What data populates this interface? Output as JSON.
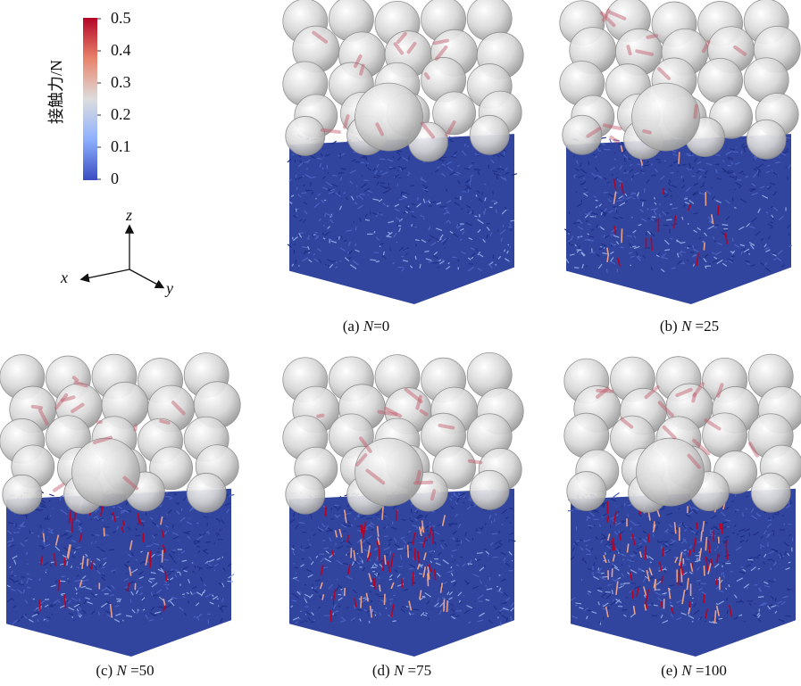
{
  "colorbar": {
    "label": "接触力/N",
    "ticks": [
      "0.5",
      "0.4",
      "0.3",
      "0.2",
      "0.1",
      "0"
    ],
    "min": 0,
    "max": 0.5,
    "colors": {
      "high": "#b40426",
      "mid": "#dddddd",
      "low": "#3b4cc0"
    }
  },
  "axes": {
    "z": "z",
    "x": "x",
    "y": "y"
  },
  "panels": [
    {
      "prefix": "(a) ",
      "var": "N",
      "suffix": "=0",
      "cycles": 0
    },
    {
      "prefix": "(b) ",
      "var": "N",
      "suffix": " =25",
      "cycles": 25
    },
    {
      "prefix": "(c) ",
      "var": "N",
      "suffix": " =50",
      "cycles": 50
    },
    {
      "prefix": "(d) ",
      "var": "N",
      "suffix": " =75",
      "cycles": 75
    },
    {
      "prefix": "(e) ",
      "var": "N",
      "suffix": " =100",
      "cycles": 100
    }
  ],
  "colors": {
    "sphere": "#cfcfcf",
    "fiber": "#2e3f9a",
    "force": "#b40426"
  }
}
